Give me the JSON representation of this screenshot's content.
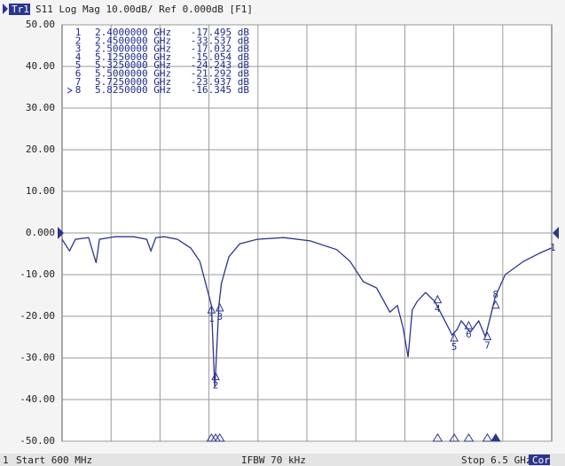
{
  "chart_data": {
    "type": "line",
    "trace_label": "Tr1",
    "title": "S11 Log Mag 10.00dB/ Ref 0.000dB [F1]",
    "channel": "1",
    "start_label": "Start 600 MHz",
    "ifbw_label": "IFBW 70 kHz",
    "stop_label": "Stop 6.5 GHz",
    "cor_label": "Cor",
    "ref_label": "1",
    "xlim": [
      0.6,
      6.5
    ],
    "ylim": [
      -50,
      50
    ],
    "yticks": [
      {
        "value": 50,
        "label": "50.00"
      },
      {
        "value": 40,
        "label": "40.00"
      },
      {
        "value": 30,
        "label": "30.00"
      },
      {
        "value": 20,
        "label": "20.00"
      },
      {
        "value": 10,
        "label": "10.00"
      },
      {
        "value": 0,
        "label": "0.000"
      },
      {
        "value": -10,
        "label": "-10.00"
      },
      {
        "value": -20,
        "label": "-20.00"
      },
      {
        "value": -30,
        "label": "-30.00"
      },
      {
        "value": -40,
        "label": "-40.00"
      },
      {
        "value": -50,
        "label": "-50.00"
      }
    ],
    "grid": true,
    "series": [
      {
        "color": "#2b3590",
        "x": [
          0.6,
          0.69,
          0.76,
          0.92,
          1.01,
          1.05,
          1.24,
          1.46,
          1.62,
          1.67,
          1.73,
          1.83,
          1.99,
          2.15,
          2.26,
          2.33,
          2.4,
          2.44,
          2.45,
          2.49,
          2.52,
          2.61,
          2.74,
          2.95,
          3.27,
          3.59,
          3.91,
          4.07,
          4.23,
          4.39,
          4.55,
          4.64,
          4.71,
          4.77,
          4.82,
          4.88,
          4.98,
          5.09,
          5.2,
          5.3,
          5.36,
          5.41,
          5.52,
          5.62,
          5.7,
          5.75,
          5.82,
          5.94,
          6.16,
          6.37,
          6.5
        ],
        "values": [
          -1.5,
          -4.3,
          -1.5,
          -1.1,
          -7.2,
          -1.5,
          -0.9,
          -0.9,
          -1.5,
          -4.3,
          -1.1,
          -0.9,
          -1.5,
          -3.6,
          -6.8,
          -12.1,
          -17.4,
          -37.0,
          -33.5,
          -17.4,
          -12.1,
          -5.7,
          -2.6,
          -1.5,
          -1.1,
          -1.9,
          -4.0,
          -6.8,
          -11.7,
          -13.2,
          -19.0,
          -17.4,
          -22.8,
          -29.8,
          -18.5,
          -16.4,
          -14.3,
          -16.4,
          -20.6,
          -24.5,
          -23.2,
          -21.1,
          -23.8,
          -21.1,
          -24.9,
          -21.1,
          -15.3,
          -10.0,
          -6.8,
          -4.7,
          -3.6
        ]
      }
    ],
    "markers": {
      "names": [
        "1",
        "2",
        "3",
        "4",
        "5",
        "6",
        "7",
        "8"
      ],
      "x": [
        2.4,
        2.45,
        2.5,
        5.125,
        5.325,
        5.5,
        5.725,
        5.825
      ],
      "values": [
        -17.495,
        -33.537,
        -17.032,
        -15.054,
        -24.243,
        -21.292,
        -23.937,
        -16.345
      ],
      "x_labels": [
        "2.4000000 GHz",
        "2.4500000 GHz",
        "2.5000000 GHz",
        "5.1250000 GHz",
        "5.3250000 GHz",
        "5.5000000 GHz",
        "5.7250000 GHz",
        "5.8250000 GHz"
      ],
      "value_labels": [
        "-17.495 dB",
        "-33.537 dB",
        "-17.032 dB",
        "-15.054 dB",
        "-24.243 dB",
        "-21.292 dB",
        "-23.937 dB",
        "-16.345 dB"
      ]
    }
  }
}
